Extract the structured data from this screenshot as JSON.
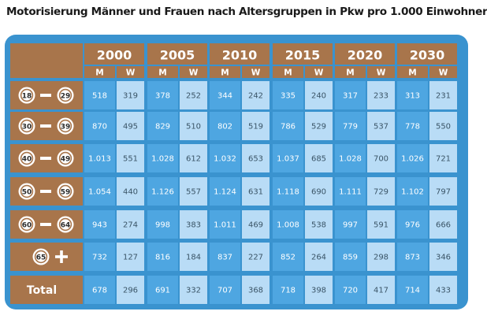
{
  "title": "Motorisierung Männer und Frauen nach Altersgruppen in Pkw pro 1.000 Einwohner",
  "chart_data": {
    "type": "table",
    "years": [
      "2000",
      "2005",
      "2010",
      "2015",
      "2020",
      "2030"
    ],
    "subheaders": [
      "M",
      "W"
    ],
    "rows": [
      {
        "label": "18 – 29",
        "badge_from": "18",
        "badge_to": "29",
        "values": [
          "518",
          "319",
          "378",
          "252",
          "344",
          "242",
          "335",
          "240",
          "317",
          "233",
          "313",
          "231"
        ]
      },
      {
        "label": "30 – 39",
        "badge_from": "30",
        "badge_to": "39",
        "values": [
          "870",
          "495",
          "829",
          "510",
          "802",
          "519",
          "786",
          "529",
          "779",
          "537",
          "778",
          "550"
        ]
      },
      {
        "label": "40 – 49",
        "badge_from": "40",
        "badge_to": "49",
        "values": [
          "1.013",
          "551",
          "1.028",
          "612",
          "1.032",
          "653",
          "1.037",
          "685",
          "1.028",
          "700",
          "1.026",
          "721"
        ]
      },
      {
        "label": "50 – 59",
        "badge_from": "50",
        "badge_to": "59",
        "values": [
          "1.054",
          "440",
          "1.126",
          "557",
          "1.124",
          "631",
          "1.118",
          "690",
          "1.111",
          "729",
          "1.102",
          "797"
        ]
      },
      {
        "label": "60 – 64",
        "badge_from": "60",
        "badge_to": "64",
        "values": [
          "943",
          "274",
          "998",
          "383",
          "1.011",
          "469",
          "1.008",
          "538",
          "997",
          "591",
          "976",
          "666"
        ]
      },
      {
        "label": "65 +",
        "badge_from": "65",
        "badge_to": "",
        "values": [
          "732",
          "127",
          "816",
          "184",
          "837",
          "227",
          "852",
          "264",
          "859",
          "298",
          "873",
          "346"
        ]
      },
      {
        "label": "Total",
        "badge_from": "",
        "badge_to": "",
        "values": [
          "678",
          "296",
          "691",
          "332",
          "707",
          "368",
          "718",
          "398",
          "720",
          "417",
          "714",
          "433"
        ]
      }
    ]
  },
  "colors": {
    "panel": "#3a93cf",
    "header": "#a8754b",
    "men_cell": "#4ea6e1",
    "women_cell": "#b9dcf6",
    "men_text": "#ffffff",
    "women_text": "#3a5466"
  }
}
